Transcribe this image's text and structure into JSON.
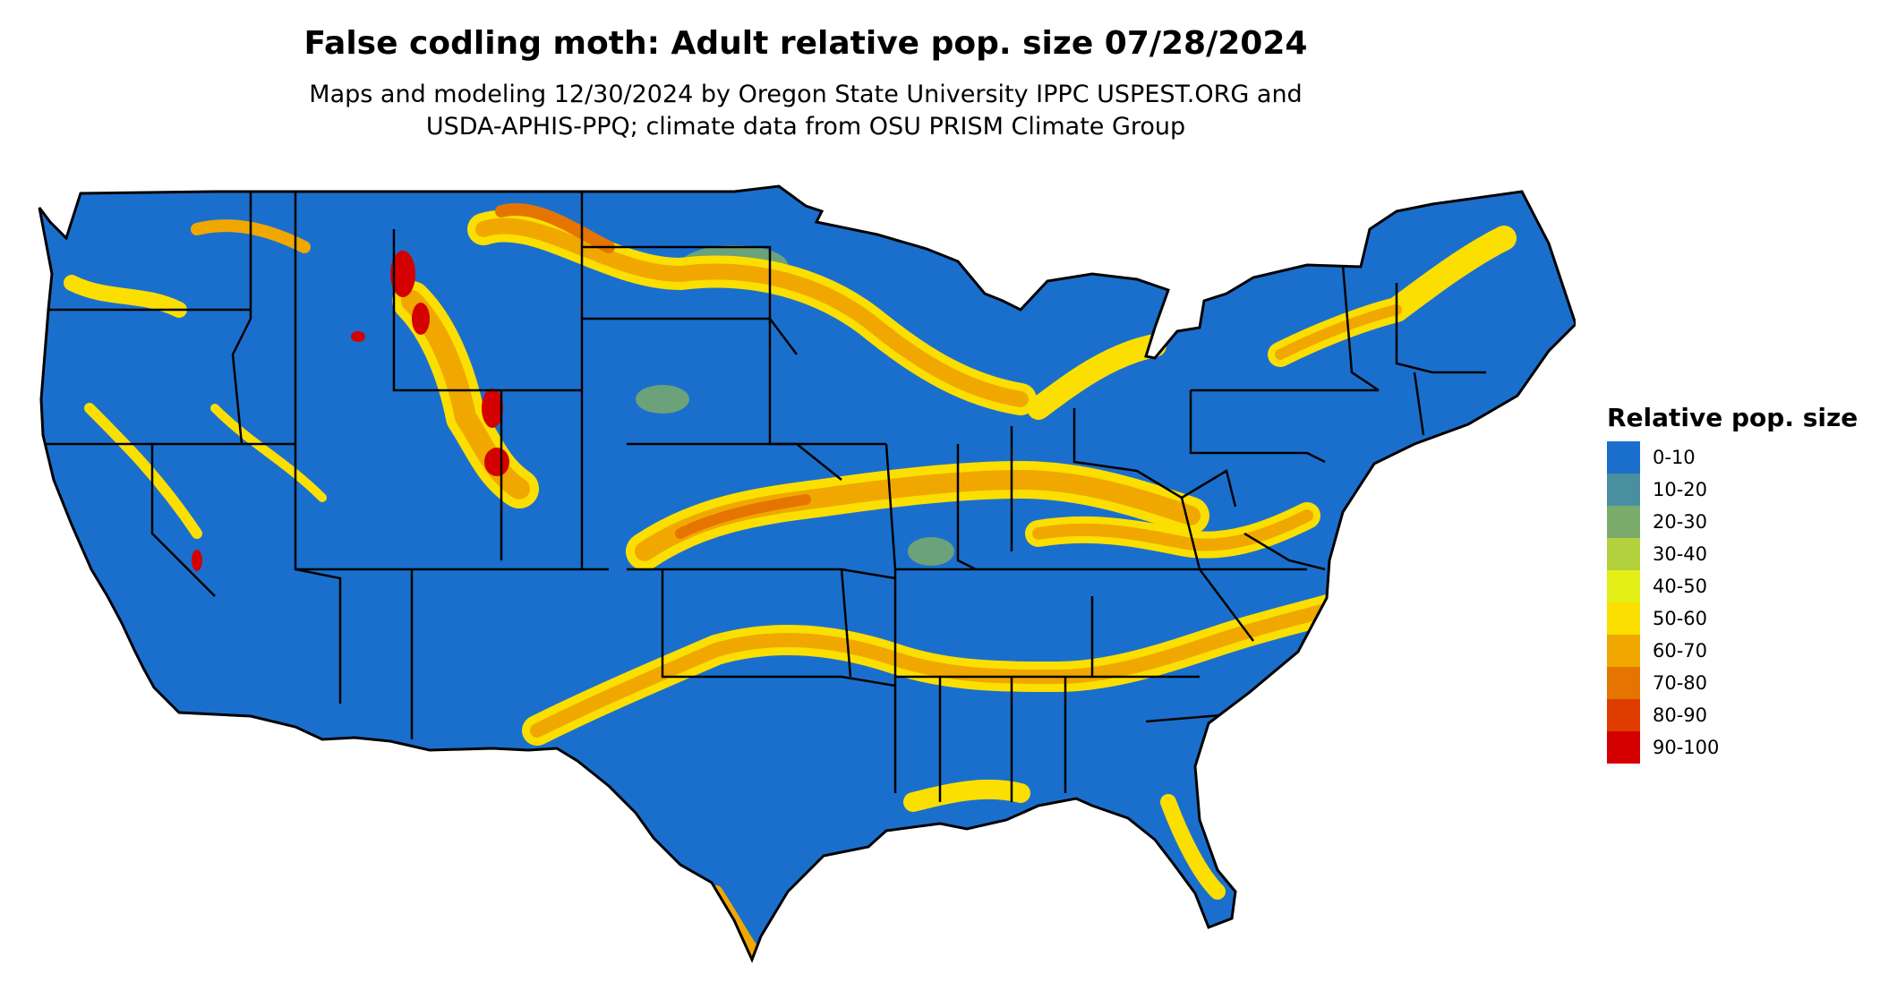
{
  "title": "False codling moth: Adult relative pop. size 07/28/2024",
  "subtitle_line1": "Maps and modeling 12/30/2024 by Oregon State University IPPC USPEST.ORG and",
  "subtitle_line2": "USDA-APHIS-PPQ; climate data from OSU PRISM Climate Group",
  "legend": {
    "title": "Relative pop. size",
    "items": [
      {
        "label": "0-10",
        "color": "#1b6fcc"
      },
      {
        "label": "10-20",
        "color": "#4a8fa0"
      },
      {
        "label": "20-30",
        "color": "#7aab6a"
      },
      {
        "label": "30-40",
        "color": "#b3d13c"
      },
      {
        "label": "40-50",
        "color": "#e3ef17"
      },
      {
        "label": "50-60",
        "color": "#fbdf00"
      },
      {
        "label": "60-70",
        "color": "#f0a800"
      },
      {
        "label": "70-80",
        "color": "#e57500"
      },
      {
        "label": "80-90",
        "color": "#df3d00"
      },
      {
        "label": "90-100",
        "color": "#d40000"
      }
    ]
  },
  "colors": {
    "base": "#1b6fcc",
    "band_yellow": "#fbdf00",
    "band_orange": "#f0a800",
    "band_deep_orange": "#e57500",
    "band_green": "#7aab6a",
    "hotspot": "#d40000",
    "border": "#000000"
  }
}
